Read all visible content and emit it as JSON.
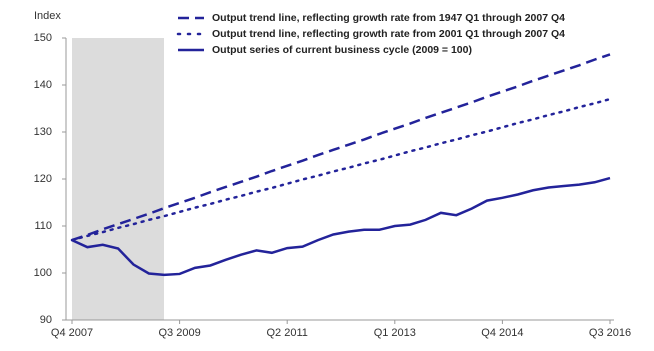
{
  "chart_data": {
    "type": "line",
    "y_label": "Index",
    "categories": [
      "Q4 2007",
      null,
      null,
      null,
      null,
      null,
      null,
      "Q3 2009",
      null,
      null,
      null,
      null,
      null,
      null,
      "Q2 2011",
      null,
      null,
      null,
      null,
      null,
      null,
      "Q1 2013",
      null,
      null,
      null,
      null,
      null,
      null,
      "Q4 2014",
      null,
      null,
      null,
      null,
      null,
      null,
      "Q3 2016"
    ],
    "series": [
      {
        "name": "Output trend line, reflecting growth rate from 1947 Q1 through 2007 Q4",
        "color": "#23239a",
        "style": "dashed",
        "values": [
          107,
          108.1,
          109.3,
          110.4,
          111.5,
          112.6,
          113.8,
          114.9,
          116,
          117.2,
          118.3,
          119.4,
          120.5,
          121.7,
          122.8,
          123.9,
          125.1,
          126.2,
          127.3,
          128.4,
          129.6,
          130.7,
          131.8,
          133,
          134.1,
          135.2,
          136.3,
          137.5,
          138.6,
          139.7,
          140.9,
          142,
          143.1,
          144.2,
          145.4,
          146.5
        ]
      },
      {
        "name": "Output trend line, reflecting growth rate from 2001 Q1 through 2007 Q4",
        "color": "#23239a",
        "style": "dotted",
        "values": [
          107,
          107.9,
          108.7,
          109.6,
          110.4,
          111.3,
          112.1,
          113,
          113.9,
          114.7,
          115.6,
          116.4,
          117.3,
          118.1,
          119,
          119.9,
          120.7,
          121.6,
          122.4,
          123.3,
          124.1,
          125,
          125.9,
          126.7,
          127.6,
          128.4,
          129.3,
          130.1,
          131,
          131.9,
          132.7,
          133.6,
          134.4,
          135.3,
          136.1,
          137
        ]
      },
      {
        "name": "Output series of current business cycle (2009 = 100)",
        "color": "#23239a",
        "style": "solid",
        "values": [
          107,
          105.5,
          106,
          105.2,
          101.8,
          99.9,
          99.6,
          99.8,
          101.1,
          101.6,
          102.8,
          103.9,
          104.8,
          104.3,
          105.3,
          105.6,
          107,
          108.2,
          108.8,
          109.2,
          109.2,
          110,
          110.3,
          111.3,
          112.8,
          112.3,
          113.7,
          115.4,
          116,
          116.7,
          117.6,
          118.2,
          118.5,
          118.8,
          119.3,
          120.2
        ]
      }
    ],
    "ylim": [
      90,
      150
    ],
    "yticks": [
      90,
      100,
      110,
      120,
      130,
      140,
      150
    ],
    "grid": false
  }
}
